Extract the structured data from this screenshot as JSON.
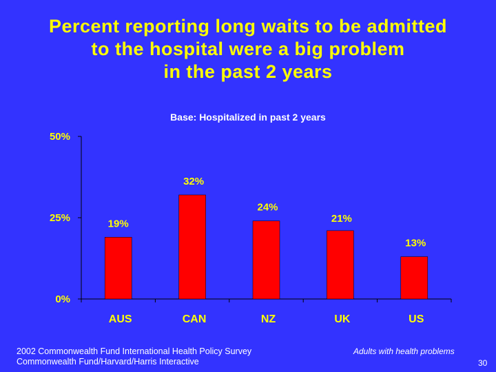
{
  "title": {
    "line1": "Percent reporting long waits to be admitted",
    "line2": "to the hospital were a big problem",
    "line3": "in the past 2 years"
  },
  "subtitle": "Base: Hospitalized in past 2 years",
  "chart_data": {
    "type": "bar",
    "categories": [
      "AUS",
      "CAN",
      "NZ",
      "UK",
      "US"
    ],
    "values": [
      19,
      32,
      24,
      21,
      13
    ],
    "value_labels": [
      "19%",
      "32%",
      "24%",
      "21%",
      "13%"
    ],
    "ylim": [
      0,
      50
    ],
    "yticks": [
      0,
      25,
      50
    ],
    "ytick_labels": [
      "0%",
      "25%",
      "50%"
    ],
    "title": "Percent reporting long waits to be admitted to the hospital were a big problem in the past 2 years",
    "xlabel": "",
    "ylabel": "",
    "grid": false,
    "bar_color": "#ff0000"
  },
  "colors": {
    "background": "#3333ff",
    "title": "#ffff00",
    "text": "#ffffff",
    "bar": "#ff0000"
  },
  "footer": {
    "source_line1": "2002 Commonwealth Fund International Health Policy Survey",
    "source_line2": "Commonwealth Fund/Harvard/Harris Interactive",
    "note": "Adults with health problems",
    "slide_number": "30"
  }
}
